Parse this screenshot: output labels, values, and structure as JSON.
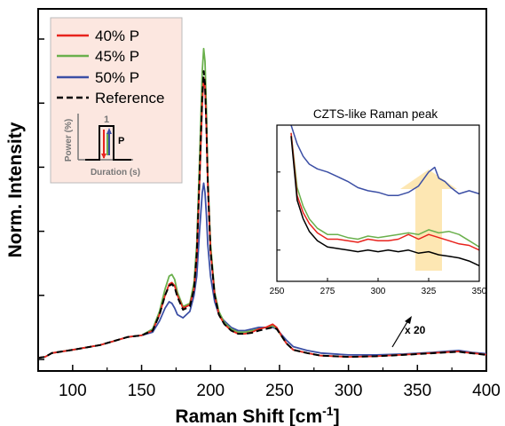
{
  "chart_data": {
    "type": "line",
    "xlabel": "Raman Shift [cm",
    "xlabel_sup": "-1",
    "xlabel_close": "]",
    "ylabel": "Norm. Intensity",
    "xlim": [
      75,
      400
    ],
    "ylim": [
      0,
      1.0
    ],
    "x_ticks": [
      "100",
      "150",
      "200",
      "250",
      "300",
      "350",
      "400"
    ],
    "legend_position": "top-left",
    "series": [
      {
        "name": "40% P",
        "color": "#e8231d",
        "dash": false,
        "x": [
          75,
          80,
          85,
          100,
          120,
          140,
          150,
          158,
          163,
          167,
          170,
          172,
          174,
          176,
          180,
          185,
          188,
          190,
          192,
          194,
          195,
          196,
          197,
          198,
          200,
          203,
          206,
          210,
          215,
          220,
          225,
          230,
          235,
          240,
          245,
          248,
          252,
          255,
          260,
          270,
          280,
          300,
          320,
          340,
          360,
          380,
          385,
          390,
          400
        ],
        "y": [
          0.005,
          0.008,
          0.02,
          0.03,
          0.045,
          0.07,
          0.075,
          0.09,
          0.14,
          0.2,
          0.235,
          0.24,
          0.23,
          0.2,
          0.16,
          0.17,
          0.22,
          0.32,
          0.55,
          0.8,
          0.88,
          0.85,
          0.72,
          0.55,
          0.34,
          0.2,
          0.14,
          0.11,
          0.09,
          0.08,
          0.08,
          0.085,
          0.095,
          0.1,
          0.11,
          0.1,
          0.07,
          0.05,
          0.03,
          0.02,
          0.012,
          0.008,
          0.01,
          0.015,
          0.02,
          0.025,
          0.022,
          0.02,
          0.015
        ]
      },
      {
        "name": "45% P",
        "color": "#6ab04c",
        "dash": false,
        "x": [
          75,
          80,
          85,
          100,
          120,
          140,
          150,
          158,
          163,
          167,
          170,
          172,
          174,
          176,
          180,
          185,
          188,
          190,
          192,
          194,
          195,
          196,
          197,
          198,
          200,
          203,
          206,
          210,
          215,
          220,
          225,
          230,
          235,
          240,
          245,
          248,
          252,
          255,
          260,
          270,
          280,
          300,
          320,
          340,
          360,
          380,
          385,
          390,
          400
        ],
        "y": [
          0.005,
          0.008,
          0.02,
          0.03,
          0.045,
          0.07,
          0.075,
          0.095,
          0.15,
          0.22,
          0.26,
          0.265,
          0.25,
          0.21,
          0.165,
          0.175,
          0.24,
          0.36,
          0.62,
          0.9,
          0.97,
          0.93,
          0.78,
          0.58,
          0.36,
          0.21,
          0.15,
          0.115,
          0.095,
          0.085,
          0.085,
          0.09,
          0.095,
          0.1,
          0.105,
          0.095,
          0.07,
          0.05,
          0.03,
          0.02,
          0.012,
          0.008,
          0.01,
          0.015,
          0.02,
          0.025,
          0.022,
          0.02,
          0.015
        ]
      },
      {
        "name": "50% P",
        "color": "#3c4fa5",
        "dash": false,
        "x": [
          75,
          80,
          85,
          100,
          120,
          140,
          150,
          158,
          163,
          167,
          170,
          172,
          174,
          176,
          180,
          185,
          188,
          190,
          192,
          194,
          195,
          196,
          197,
          198,
          200,
          203,
          206,
          210,
          215,
          220,
          225,
          230,
          235,
          240,
          245,
          248,
          252,
          255,
          260,
          270,
          280,
          300,
          320,
          340,
          360,
          380,
          385,
          390,
          400
        ],
        "y": [
          0.005,
          0.008,
          0.02,
          0.03,
          0.045,
          0.07,
          0.075,
          0.085,
          0.12,
          0.16,
          0.18,
          0.175,
          0.16,
          0.14,
          0.13,
          0.15,
          0.2,
          0.26,
          0.4,
          0.52,
          0.55,
          0.52,
          0.45,
          0.36,
          0.26,
          0.18,
          0.14,
          0.12,
          0.1,
          0.09,
          0.09,
          0.095,
          0.1,
          0.1,
          0.1,
          0.095,
          0.075,
          0.06,
          0.04,
          0.028,
          0.02,
          0.014,
          0.014,
          0.017,
          0.022,
          0.028,
          0.025,
          0.022,
          0.018
        ]
      },
      {
        "name": "Reference",
        "color": "#000000",
        "dash": true,
        "x": [
          75,
          80,
          85,
          100,
          120,
          140,
          150,
          158,
          163,
          167,
          170,
          172,
          174,
          176,
          180,
          185,
          188,
          190,
          192,
          194,
          195,
          196,
          197,
          198,
          200,
          203,
          206,
          210,
          215,
          220,
          225,
          230,
          235,
          240,
          245,
          248,
          252,
          255,
          260,
          270,
          280,
          300,
          320,
          340,
          360,
          380,
          385,
          390,
          400
        ],
        "y": [
          0.005,
          0.008,
          0.02,
          0.03,
          0.045,
          0.07,
          0.075,
          0.09,
          0.14,
          0.2,
          0.23,
          0.235,
          0.225,
          0.195,
          0.155,
          0.165,
          0.22,
          0.33,
          0.57,
          0.82,
          0.9,
          0.86,
          0.72,
          0.55,
          0.34,
          0.2,
          0.14,
          0.11,
          0.09,
          0.08,
          0.08,
          0.083,
          0.09,
          0.095,
          0.1,
          0.095,
          0.07,
          0.05,
          0.03,
          0.02,
          0.012,
          0.008,
          0.01,
          0.014,
          0.019,
          0.024,
          0.021,
          0.019,
          0.014
        ]
      }
    ],
    "inset": {
      "title": "CZTS-like Raman peak",
      "xlim": [
        250,
        350
      ],
      "x_ticks": [
        "250",
        "275",
        "300",
        "325",
        "350"
      ],
      "ylim": [
        0,
        1.0
      ],
      "annotation_arrow_color": "#fde7b3",
      "series": [
        {
          "name": "50% P",
          "color": "#3c4fa5",
          "x": [
            257,
            260,
            263,
            266,
            270,
            275,
            280,
            285,
            290,
            295,
            300,
            305,
            310,
            315,
            320,
            325,
            328,
            330,
            333,
            336,
            340,
            345,
            350
          ],
          "y": [
            1.0,
            0.88,
            0.8,
            0.75,
            0.72,
            0.7,
            0.67,
            0.64,
            0.6,
            0.58,
            0.57,
            0.55,
            0.55,
            0.57,
            0.61,
            0.7,
            0.73,
            0.66,
            0.64,
            0.6,
            0.56,
            0.58,
            0.56
          ]
        },
        {
          "name": "45% P",
          "color": "#6ab04c",
          "x": [
            257,
            260,
            263,
            266,
            270,
            275,
            280,
            285,
            290,
            295,
            300,
            305,
            310,
            315,
            320,
            325,
            330,
            335,
            340,
            345,
            350
          ],
          "y": [
            0.95,
            0.6,
            0.48,
            0.4,
            0.34,
            0.3,
            0.3,
            0.28,
            0.27,
            0.29,
            0.28,
            0.29,
            0.3,
            0.31,
            0.3,
            0.33,
            0.31,
            0.32,
            0.3,
            0.26,
            0.22
          ]
        },
        {
          "name": "40% P",
          "color": "#e8231d",
          "x": [
            257,
            260,
            263,
            266,
            270,
            275,
            280,
            285,
            290,
            295,
            300,
            305,
            310,
            315,
            320,
            325,
            330,
            335,
            340,
            345,
            350
          ],
          "y": [
            0.95,
            0.55,
            0.44,
            0.37,
            0.31,
            0.27,
            0.27,
            0.26,
            0.25,
            0.27,
            0.26,
            0.26,
            0.27,
            0.3,
            0.27,
            0.3,
            0.28,
            0.26,
            0.24,
            0.23,
            0.2
          ]
        },
        {
          "name": "Reference",
          "color": "#000000",
          "x": [
            257,
            260,
            263,
            266,
            270,
            275,
            280,
            285,
            290,
            295,
            300,
            305,
            310,
            315,
            320,
            325,
            330,
            335,
            340,
            345,
            350
          ],
          "y": [
            0.93,
            0.52,
            0.4,
            0.32,
            0.26,
            0.22,
            0.21,
            0.2,
            0.19,
            0.2,
            0.19,
            0.2,
            0.19,
            0.2,
            0.18,
            0.19,
            0.17,
            0.16,
            0.15,
            0.13,
            0.1
          ]
        }
      ]
    },
    "magnify_label": "x 20",
    "pulse_diagram": {
      "ylabel": "Power (%)",
      "xlabel": "Duration (s)",
      "label_1": "1",
      "label_p": "P"
    }
  }
}
